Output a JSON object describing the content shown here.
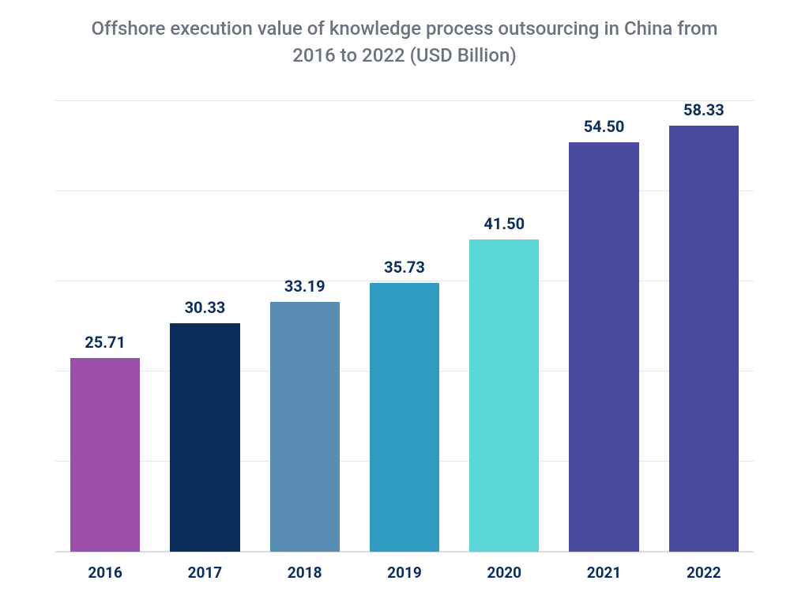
{
  "chart": {
    "type": "bar",
    "title": "Offshore execution value of knowledge process outsourcing in China from 2016 to 2022 (USD Billion)",
    "title_color": "#6b7280",
    "title_fontsize": 24,
    "background_color": "#ffffff",
    "grid_color": "#e5e7eb",
    "gridline_count": 6,
    "ylim": [
      0,
      60
    ],
    "bar_width": 0.7,
    "value_label_color": "#0a2e5c",
    "value_label_fontsize": 20,
    "value_label_fontweight": 700,
    "x_label_color": "#0a2e5c",
    "x_label_fontsize": 19,
    "x_label_fontweight": 700,
    "categories": [
      "2016",
      "2017",
      "2018",
      "2019",
      "2020",
      "2021",
      "2022"
    ],
    "values": [
      25.71,
      30.33,
      33.19,
      35.73,
      41.5,
      54.5,
      58.33
    ],
    "value_labels": [
      "25.71",
      "30.33",
      "33.19",
      "35.73",
      "41.50",
      "54.50",
      "58.33"
    ],
    "bar_colors": [
      "#9b4fa8",
      "#0a2e5c",
      "#5a8db3",
      "#2f9bc1",
      "#5bd6d6",
      "#4a4a9e",
      "#4a4a9e"
    ]
  }
}
